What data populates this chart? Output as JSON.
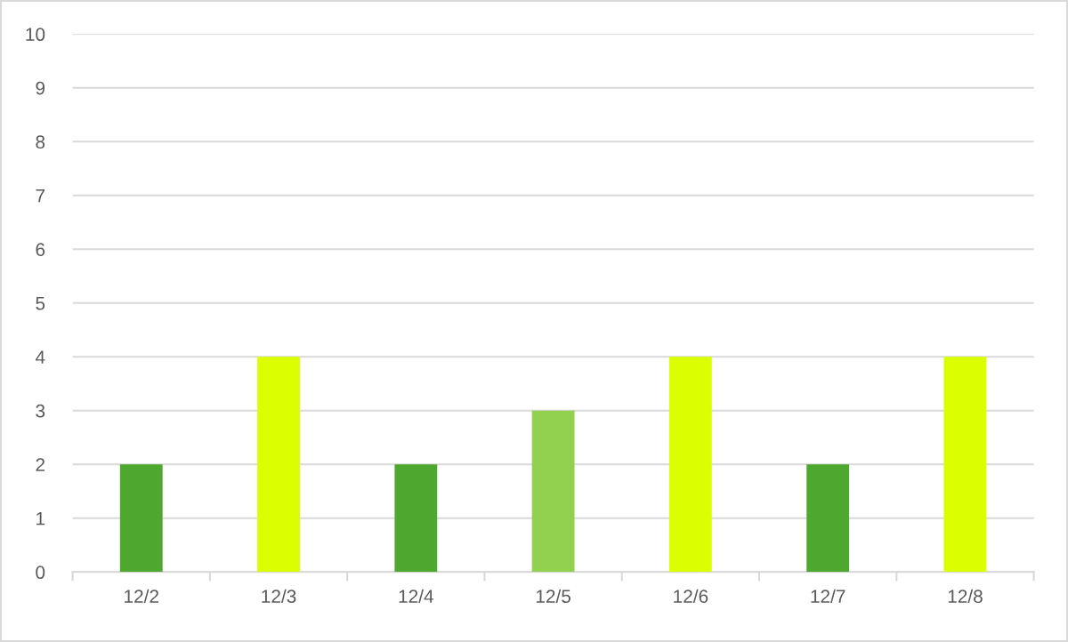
{
  "chart_data": {
    "type": "bar",
    "categories": [
      "12/2",
      "12/3",
      "12/4",
      "12/5",
      "12/6",
      "12/7",
      "12/8"
    ],
    "values": [
      2,
      4,
      2,
      3,
      4,
      2,
      4
    ],
    "colors": [
      "#4ea72e",
      "#dbff00",
      "#4ea72e",
      "#92d050",
      "#dbff00",
      "#4ea72e",
      "#dbff00"
    ],
    "ylim": [
      0,
      10
    ],
    "yticks": [
      0,
      1,
      2,
      3,
      4,
      5,
      6,
      7,
      8,
      9,
      10
    ],
    "grid": "y",
    "legend": false
  }
}
